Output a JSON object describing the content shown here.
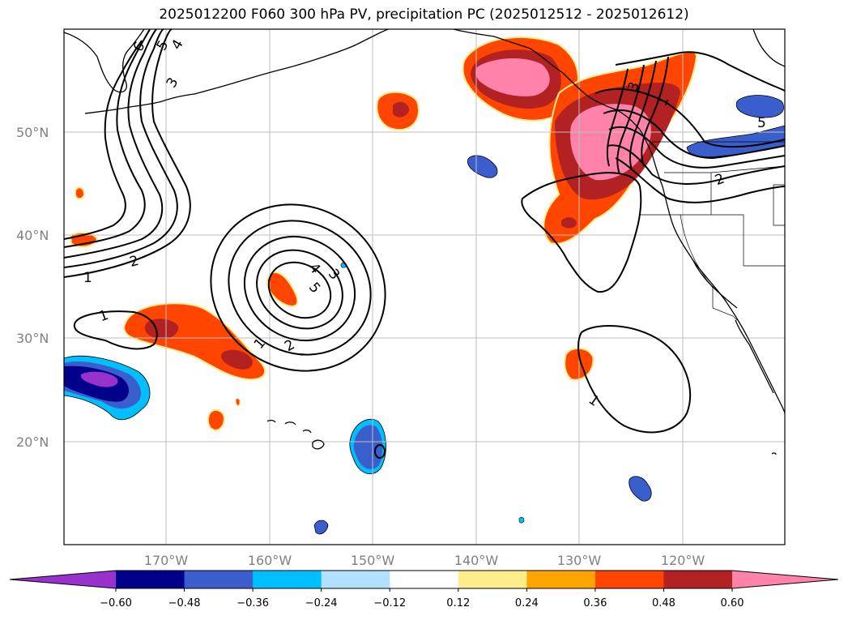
{
  "title": "2025012200 F060 300 hPa PV, precipitation PC (2025012512 - 2025012612)",
  "lat_labels": [
    "50°N",
    "40°N",
    "30°N",
    "20°N"
  ],
  "lon_labels": [
    "170°W",
    "160°W",
    "150°W",
    "140°W",
    "130°W",
    "120°W"
  ],
  "colorbar": {
    "ticks": [
      "−0.60",
      "−0.48",
      "−0.36",
      "−0.24",
      "−0.12",
      "0.12",
      "0.24",
      "0.36",
      "0.48",
      "0.60"
    ],
    "colors": [
      "#9932cc",
      "#00008b",
      "#3a5fcd",
      "#00bfff",
      "#b0e2ff",
      "#ffffff",
      "#ffec8b",
      "#ffa500",
      "#ff4500",
      "#b22222",
      "#ff82ab"
    ]
  },
  "contour_labels": [
    "6",
    "5",
    "4",
    "3",
    "2",
    "1",
    "1",
    "4",
    "5",
    "3",
    "1",
    "2",
    "3",
    "1",
    "5",
    "2",
    "1"
  ]
}
